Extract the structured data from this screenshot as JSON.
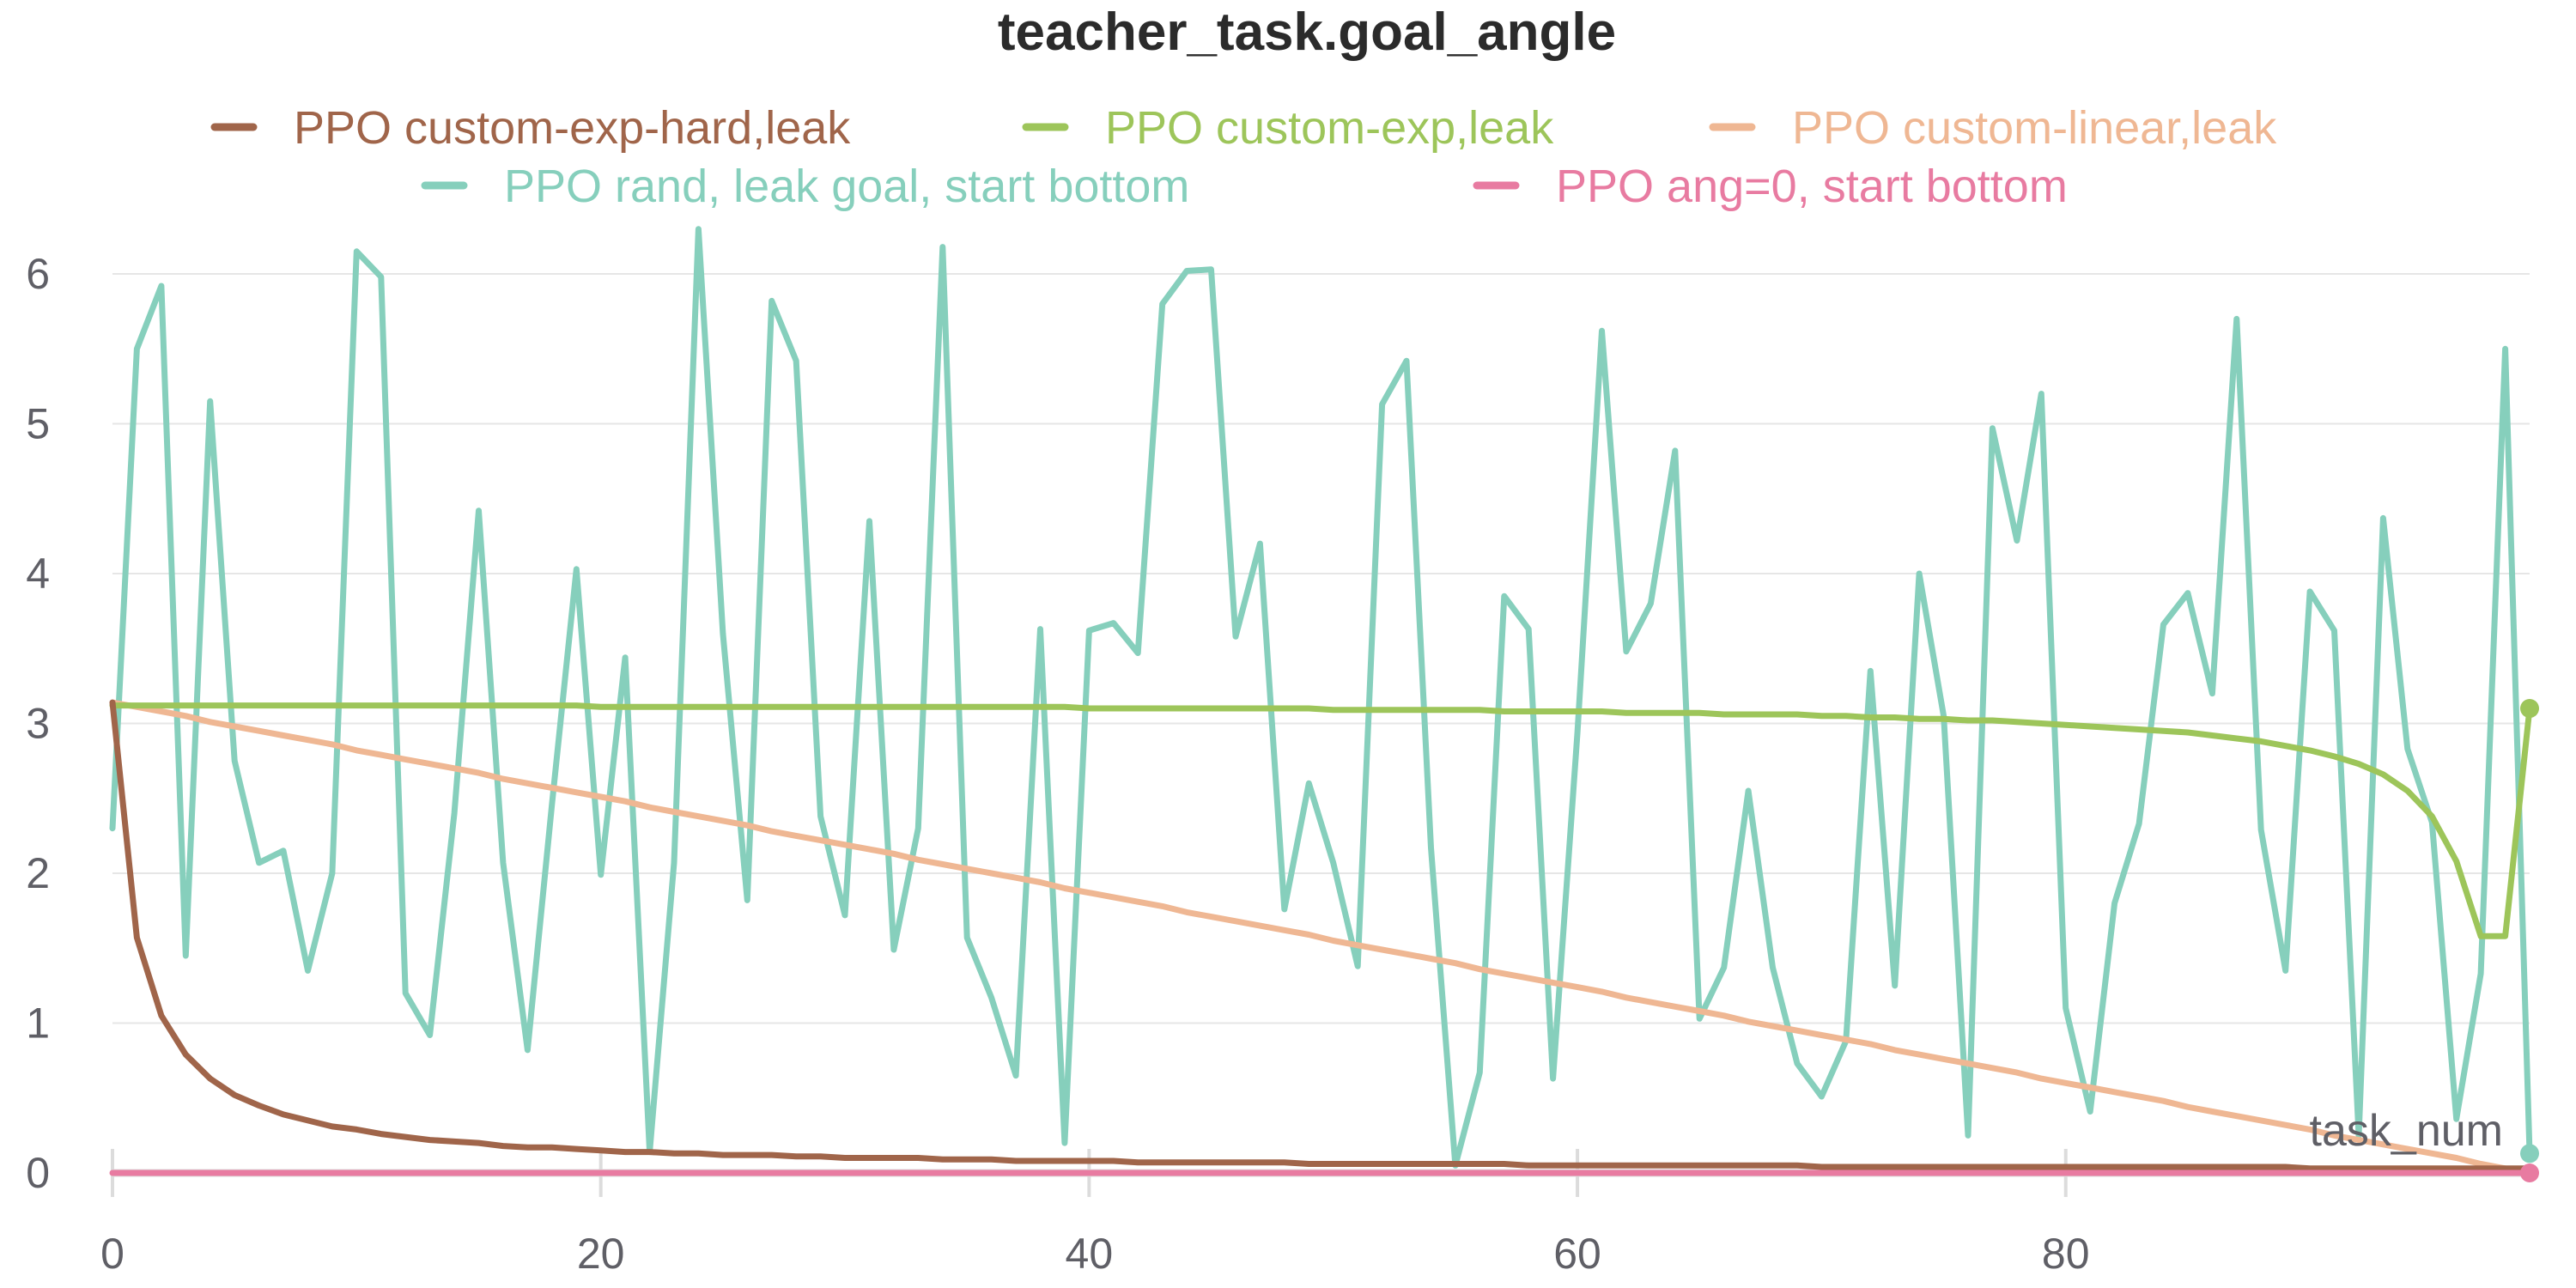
{
  "chart_data": {
    "type": "line",
    "title": "teacher_task.goal_angle",
    "xlabel": "task_num",
    "ylabel": "",
    "xlim": [
      0,
      99
    ],
    "ylim": [
      0,
      6.3
    ],
    "x_ticks": [
      0,
      20,
      40,
      60,
      80
    ],
    "y_ticks": [
      0,
      1,
      2,
      3,
      4,
      5,
      6
    ],
    "grid": true,
    "legend_position": "top",
    "series": [
      {
        "name": "PPO custom-exp-hard,leak",
        "color": "#a0654a",
        "formula": "pi/(x+1)",
        "values": [
          3.14,
          1.57,
          1.05,
          0.79,
          0.63,
          0.52,
          0.45,
          0.39,
          0.35,
          0.31,
          0.29,
          0.26,
          0.24,
          0.22,
          0.21,
          0.2,
          0.18,
          0.17,
          0.17,
          0.16,
          0.15,
          0.14,
          0.14,
          0.13,
          0.13,
          0.12,
          0.12,
          0.12,
          0.11,
          0.11,
          0.1,
          0.1,
          0.1,
          0.1,
          0.09,
          0.09,
          0.09,
          0.08,
          0.08,
          0.08,
          0.08,
          0.08,
          0.07,
          0.07,
          0.07,
          0.07,
          0.07,
          0.07,
          0.07,
          0.06,
          0.06,
          0.06,
          0.06,
          0.06,
          0.06,
          0.06,
          0.06,
          0.06,
          0.05,
          0.05,
          0.05,
          0.05,
          0.05,
          0.05,
          0.05,
          0.05,
          0.05,
          0.05,
          0.05,
          0.05,
          0.04,
          0.04,
          0.04,
          0.04,
          0.04,
          0.04,
          0.04,
          0.04,
          0.04,
          0.04,
          0.04,
          0.04,
          0.04,
          0.04,
          0.04,
          0.04,
          0.04,
          0.04,
          0.04,
          0.04,
          0.03,
          0.03,
          0.03,
          0.03,
          0.03,
          0.03,
          0.03,
          0.03,
          0.03,
          0.03
        ]
      },
      {
        "name": "PPO custom-exp,leak",
        "color": "#9dc55a",
        "values": [
          3.12,
          3.12,
          3.12,
          3.12,
          3.12,
          3.12,
          3.12,
          3.12,
          3.12,
          3.12,
          3.12,
          3.12,
          3.12,
          3.12,
          3.12,
          3.12,
          3.12,
          3.12,
          3.12,
          3.12,
          3.11,
          3.11,
          3.11,
          3.11,
          3.11,
          3.11,
          3.11,
          3.11,
          3.11,
          3.11,
          3.11,
          3.11,
          3.11,
          3.11,
          3.11,
          3.11,
          3.11,
          3.11,
          3.11,
          3.11,
          3.1,
          3.1,
          3.1,
          3.1,
          3.1,
          3.1,
          3.1,
          3.1,
          3.1,
          3.1,
          3.09,
          3.09,
          3.09,
          3.09,
          3.09,
          3.09,
          3.09,
          3.08,
          3.08,
          3.08,
          3.08,
          3.08,
          3.07,
          3.07,
          3.07,
          3.07,
          3.06,
          3.06,
          3.06,
          3.06,
          3.05,
          3.05,
          3.04,
          3.04,
          3.03,
          3.03,
          3.02,
          3.02,
          3.01,
          3.0,
          2.99,
          2.98,
          2.97,
          2.96,
          2.95,
          2.94,
          2.92,
          2.9,
          2.88,
          2.85,
          2.82,
          2.78,
          2.73,
          2.66,
          2.55,
          2.38,
          2.08,
          1.58,
          1.58,
          3.1
        ]
      },
      {
        "name": "PPO custom-linear,leak",
        "color": "#efb793",
        "values": [
          3.14,
          3.11,
          3.08,
          3.05,
          3.01,
          2.98,
          2.95,
          2.92,
          2.89,
          2.86,
          2.82,
          2.79,
          2.76,
          2.73,
          2.7,
          2.67,
          2.63,
          2.6,
          2.57,
          2.54,
          2.51,
          2.48,
          2.44,
          2.41,
          2.38,
          2.35,
          2.32,
          2.28,
          2.25,
          2.22,
          2.19,
          2.16,
          2.13,
          2.09,
          2.06,
          2.03,
          2.0,
          1.97,
          1.94,
          1.9,
          1.87,
          1.84,
          1.81,
          1.78,
          1.74,
          1.71,
          1.68,
          1.65,
          1.62,
          1.59,
          1.55,
          1.52,
          1.49,
          1.46,
          1.43,
          1.4,
          1.36,
          1.33,
          1.3,
          1.27,
          1.24,
          1.21,
          1.17,
          1.14,
          1.11,
          1.08,
          1.05,
          1.01,
          0.98,
          0.95,
          0.92,
          0.89,
          0.86,
          0.82,
          0.79,
          0.76,
          0.73,
          0.7,
          0.67,
          0.63,
          0.6,
          0.57,
          0.54,
          0.51,
          0.48,
          0.44,
          0.41,
          0.38,
          0.35,
          0.32,
          0.29,
          0.25,
          0.22,
          0.19,
          0.16,
          0.13,
          0.1,
          0.06,
          0.03,
          0.0
        ]
      },
      {
        "name": "PPO rand, leak goal, start bottom",
        "color": "#86cfbc",
        "values": [
          2.3,
          5.5,
          5.92,
          1.45,
          5.15,
          2.75,
          2.07,
          2.15,
          1.35,
          2.0,
          6.15,
          5.98,
          1.2,
          0.92,
          2.4,
          4.42,
          2.07,
          0.82,
          2.46,
          4.03,
          1.99,
          3.44,
          0.14,
          2.07,
          6.3,
          3.6,
          1.82,
          5.82,
          5.42,
          2.38,
          1.72,
          4.35,
          1.49,
          2.3,
          6.18,
          1.57,
          1.17,
          0.65,
          3.63,
          0.2,
          3.62,
          3.67,
          3.47,
          5.8,
          6.02,
          6.03,
          3.58,
          4.2,
          1.76,
          2.6,
          2.07,
          1.38,
          5.13,
          5.42,
          2.17,
          0.05,
          0.67,
          3.85,
          3.63,
          0.63,
          2.94,
          5.62,
          3.48,
          3.8,
          4.82,
          1.03,
          1.37,
          2.55,
          1.37,
          0.73,
          0.51,
          0.88,
          3.35,
          1.25,
          4.0,
          3.05,
          0.25,
          4.97,
          4.22,
          5.2,
          1.1,
          0.41,
          1.8,
          2.33,
          3.66,
          3.87,
          3.2,
          5.7,
          2.29,
          1.35,
          3.88,
          3.62,
          0.25,
          4.37,
          2.83,
          2.34,
          0.36,
          1.33,
          5.5,
          0.13
        ]
      },
      {
        "name": "PPO ang=0, start bottom",
        "color": "#e87ba1",
        "values": [
          0.0,
          0.0,
          0.0,
          0.0,
          0.0,
          0.0,
          0.0,
          0.0,
          0.0,
          0.0,
          0.0,
          0.0,
          0.0,
          0.0,
          0.0,
          0.0,
          0.0,
          0.0,
          0.0,
          0.0,
          0.0,
          0.0,
          0.0,
          0.0,
          0.0,
          0.0,
          0.0,
          0.0,
          0.0,
          0.0,
          0.0,
          0.0,
          0.0,
          0.0,
          0.0,
          0.0,
          0.0,
          0.0,
          0.0,
          0.0,
          0.0,
          0.0,
          0.0,
          0.0,
          0.0,
          0.0,
          0.0,
          0.0,
          0.0,
          0.0,
          0.0,
          0.0,
          0.0,
          0.0,
          0.0,
          0.0,
          0.0,
          0.0,
          0.0,
          0.0,
          0.0,
          0.0,
          0.0,
          0.0,
          0.0,
          0.0,
          0.0,
          0.0,
          0.0,
          0.0,
          0.0,
          0.0,
          0.0,
          0.0,
          0.0,
          0.0,
          0.0,
          0.0,
          0.0,
          0.0,
          0.0,
          0.0,
          0.0,
          0.0,
          0.0,
          0.0,
          0.0,
          0.0,
          0.0,
          0.0,
          0.0,
          0.0,
          0.0,
          0.0,
          0.0,
          0.0,
          0.0,
          0.0,
          0.0,
          0.0
        ]
      }
    ]
  }
}
